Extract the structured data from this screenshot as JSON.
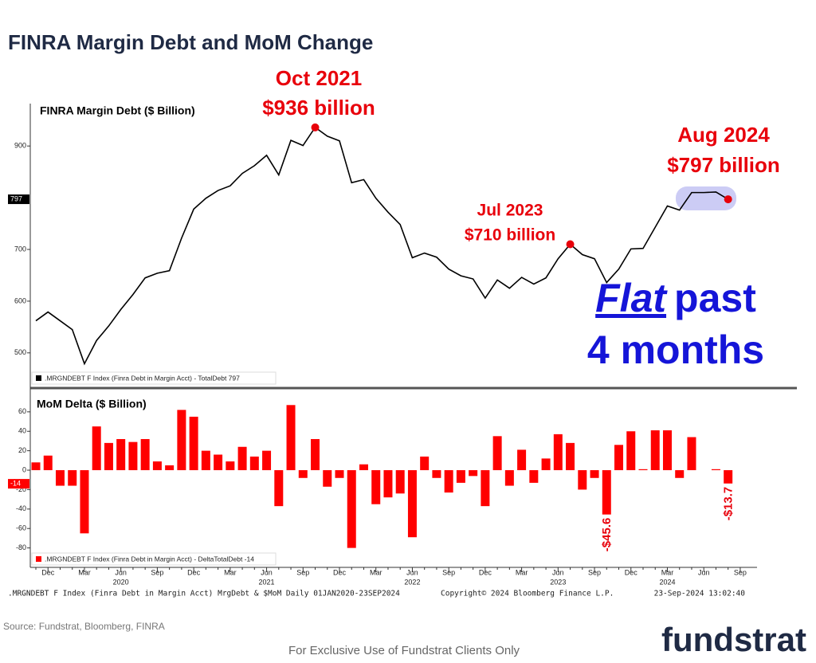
{
  "title": "FINRA Margin Debt and MoM Change",
  "source": "Source: Fundstrat, Bloomberg, FINRA",
  "footer": "For Exclusive Use of Fundstrat Clients Only",
  "logo": "fundstrat",
  "bloomberg": {
    "description": ".MRGNDEBT F Index (Finra Debt in Margin Acct) MrgDebt & $MoM  Daily 01JAN2020-23SEP2024",
    "copyright": "Copyright© 2024 Bloomberg Finance L.P.",
    "timestamp": "23-Sep-2024 13:02:40"
  },
  "callout": {
    "emphasis": "Flat",
    "rest": "past",
    "line2": "4 months",
    "color": "#1515d8"
  },
  "chart_data": [
    {
      "type": "line",
      "title": "FINRA Margin Debt ($ Billion)",
      "color": "#000000",
      "legend": ".MRGNDEBT F Index (Finra Debt in Margin Acct) - TotalDebt 797",
      "last_value": 797,
      "values": [
        562,
        579,
        562,
        545,
        479,
        524,
        552,
        584,
        613,
        645,
        654,
        659,
        722,
        778,
        799,
        814,
        823,
        847,
        862,
        882,
        844,
        911,
        901,
        936,
        919,
        910,
        829,
        835,
        799,
        772,
        748,
        684,
        693,
        685,
        662,
        649,
        643,
        606,
        641,
        625,
        646,
        633,
        645,
        682,
        710,
        690,
        682,
        636,
        662,
        701,
        702,
        743,
        784,
        776,
        810,
        810,
        811,
        797,
        null
      ],
      "ylim": [
        435,
        982
      ],
      "yticks": [
        500,
        600,
        700,
        900
      ],
      "annotations": [
        {
          "lines": [
            "Oct 2021",
            "$936 billion"
          ]
        },
        {
          "lines": [
            "Jul 2023",
            "$710 billion"
          ]
        },
        {
          "lines": [
            "Aug 2024",
            "$797 billion"
          ]
        }
      ]
    },
    {
      "type": "bar",
      "title": "MoM Delta ($ Billion)",
      "color": "#ff0000",
      "legend": ".MRGNDEBT F Index (Finra Debt in Margin Acct) - DeltaTotalDebt -14",
      "last_value": -14,
      "categories": [
        null,
        "Dec",
        null,
        null,
        "Mar",
        null,
        null,
        "Jun",
        null,
        null,
        "Sep",
        null,
        null,
        "Dec",
        null,
        null,
        "Mar",
        null,
        null,
        "Jun",
        null,
        null,
        "Sep",
        null,
        null,
        "Dec",
        null,
        null,
        "Mar",
        null,
        null,
        "Jun",
        null,
        null,
        "Sep",
        null,
        null,
        "Dec",
        null,
        null,
        "Mar",
        null,
        null,
        "Jun",
        null,
        null,
        "Sep",
        null,
        null,
        "Dec",
        null,
        null,
        "Mar",
        null,
        null,
        "Jun",
        null,
        null,
        "Sep"
      ],
      "years": [
        null,
        null,
        null,
        null,
        null,
        null,
        null,
        "2020",
        null,
        null,
        null,
        null,
        null,
        null,
        null,
        null,
        null,
        null,
        null,
        "2021",
        null,
        null,
        null,
        null,
        null,
        null,
        null,
        null,
        null,
        null,
        null,
        "2022",
        null,
        null,
        null,
        null,
        null,
        null,
        null,
        null,
        null,
        null,
        null,
        "2023",
        null,
        null,
        null,
        null,
        null,
        null,
        null,
        null,
        "2024",
        null,
        null,
        null,
        null,
        null,
        null
      ],
      "values": [
        8,
        15,
        -16,
        -16,
        -65,
        45,
        28,
        32,
        29,
        32,
        9,
        5,
        62,
        55,
        20,
        16,
        9,
        24,
        14,
        20,
        -37,
        67,
        -8,
        32,
        -17,
        -8,
        -80,
        6,
        -35,
        -28,
        -24,
        -69,
        14,
        -8,
        -23,
        -13,
        -6,
        -37,
        35,
        -16,
        21,
        -13,
        12,
        37,
        28,
        -20,
        -8,
        -45.6,
        26,
        40,
        1,
        41,
        41,
        -8,
        34,
        0,
        1,
        -13.7,
        null
      ],
      "value_labels": [
        null,
        null,
        null,
        null,
        null,
        null,
        null,
        null,
        null,
        null,
        null,
        null,
        null,
        null,
        null,
        null,
        null,
        null,
        null,
        null,
        null,
        null,
        null,
        null,
        null,
        null,
        null,
        null,
        null,
        null,
        null,
        null,
        null,
        null,
        null,
        null,
        null,
        null,
        null,
        null,
        null,
        null,
        null,
        null,
        null,
        null,
        null,
        "-$45.6",
        null,
        null,
        null,
        null,
        null,
        null,
        null,
        null,
        null,
        "-$13.7",
        null
      ],
      "ylim": [
        -100,
        82
      ],
      "yticks": [
        -80,
        -60,
        -40,
        -20,
        0,
        20,
        40,
        60
      ]
    }
  ]
}
